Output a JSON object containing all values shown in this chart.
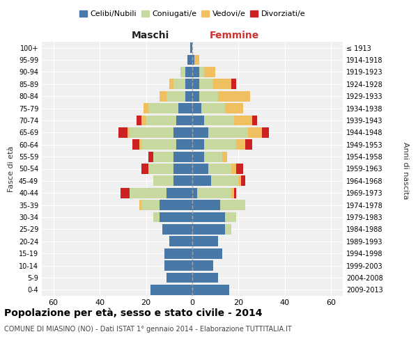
{
  "age_groups": [
    "0-4",
    "5-9",
    "10-14",
    "15-19",
    "20-24",
    "25-29",
    "30-34",
    "35-39",
    "40-44",
    "45-49",
    "50-54",
    "55-59",
    "60-64",
    "65-69",
    "70-74",
    "75-79",
    "80-84",
    "85-89",
    "90-94",
    "95-99",
    "100+"
  ],
  "birth_years": [
    "2009-2013",
    "2004-2008",
    "1999-2003",
    "1994-1998",
    "1989-1993",
    "1984-1988",
    "1979-1983",
    "1974-1978",
    "1969-1973",
    "1964-1968",
    "1959-1963",
    "1954-1958",
    "1949-1953",
    "1944-1948",
    "1939-1943",
    "1934-1938",
    "1929-1933",
    "1924-1928",
    "1919-1923",
    "1914-1918",
    "≤ 1913"
  ],
  "maschi": {
    "celibi": [
      18,
      11,
      12,
      12,
      10,
      13,
      14,
      14,
      11,
      8,
      8,
      8,
      7,
      8,
      7,
      6,
      3,
      3,
      3,
      2,
      1
    ],
    "coniugati": [
      0,
      0,
      0,
      0,
      0,
      0,
      3,
      8,
      16,
      9,
      11,
      9,
      15,
      19,
      13,
      13,
      8,
      5,
      2,
      0,
      0
    ],
    "vedovi": [
      0,
      0,
      0,
      0,
      0,
      0,
      0,
      1,
      0,
      0,
      0,
      0,
      1,
      1,
      2,
      2,
      3,
      2,
      0,
      0,
      0
    ],
    "divorziati": [
      0,
      0,
      0,
      0,
      0,
      0,
      0,
      0,
      4,
      0,
      3,
      2,
      3,
      4,
      2,
      0,
      0,
      0,
      0,
      0,
      0
    ]
  },
  "femmine": {
    "nubili": [
      16,
      11,
      9,
      13,
      11,
      14,
      14,
      12,
      2,
      8,
      7,
      5,
      5,
      7,
      5,
      4,
      3,
      3,
      3,
      1,
      0
    ],
    "coniugate": [
      0,
      0,
      0,
      0,
      0,
      3,
      5,
      11,
      15,
      12,
      10,
      8,
      14,
      17,
      13,
      10,
      8,
      6,
      2,
      0,
      0
    ],
    "vedove": [
      0,
      0,
      0,
      0,
      0,
      0,
      0,
      0,
      1,
      1,
      2,
      2,
      4,
      6,
      8,
      8,
      14,
      8,
      5,
      2,
      0
    ],
    "divorziate": [
      0,
      0,
      0,
      0,
      0,
      0,
      0,
      0,
      1,
      2,
      3,
      0,
      3,
      3,
      2,
      0,
      0,
      2,
      0,
      0,
      0
    ]
  },
  "colors": {
    "celibi": "#4878a8",
    "coniugati": "#c8d9a0",
    "vedovi": "#f0c060",
    "divorziati": "#cc2222"
  },
  "xlim": 65,
  "title": "Popolazione per età, sesso e stato civile - 2014",
  "subtitle": "COMUNE DI MIASINO (NO) - Dati ISTAT 1° gennaio 2014 - Elaborazione TUTTITALIA.IT",
  "ylabel_left": "Fasce di età",
  "ylabel_right": "Anni di nascita",
  "xlabel_left": "Maschi",
  "xlabel_right": "Femmine",
  "legend_labels": [
    "Celibi/Nubili",
    "Coniugati/e",
    "Vedovi/e",
    "Divorziati/e"
  ],
  "background_color": "#f0f0f0",
  "grid_color": "#ffffff"
}
